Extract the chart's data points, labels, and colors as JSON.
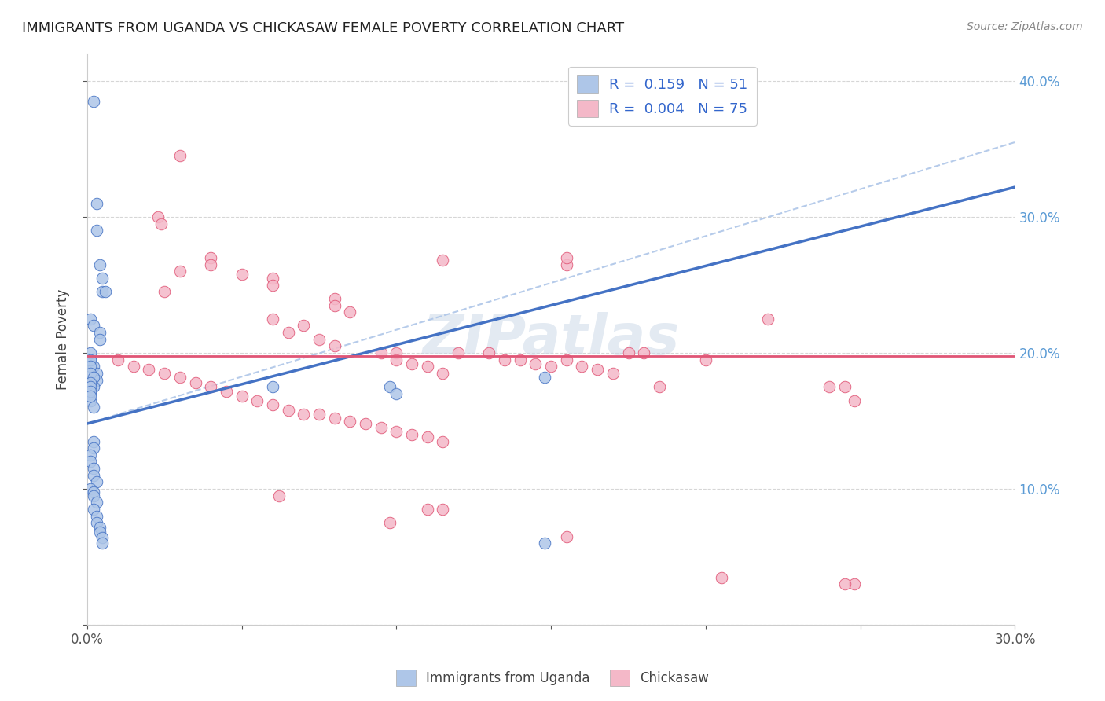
{
  "title": "IMMIGRANTS FROM UGANDA VS CHICKASAW FEMALE POVERTY CORRELATION CHART",
  "source": "Source: ZipAtlas.com",
  "ylabel": "Female Poverty",
  "xlim": [
    0.0,
    0.3
  ],
  "ylim": [
    0.0,
    0.42
  ],
  "watermark": "ZIPatlas",
  "color_blue": "#aec6e8",
  "color_pink": "#f4b8c8",
  "line_blue": "#4472c4",
  "line_pink": "#e05575",
  "line_dashed_color": "#aec6e8",
  "right_tick_color": "#5b9bd5",
  "uganda_points": [
    [
      0.002,
      0.385
    ],
    [
      0.003,
      0.31
    ],
    [
      0.003,
      0.29
    ],
    [
      0.004,
      0.265
    ],
    [
      0.005,
      0.255
    ],
    [
      0.005,
      0.245
    ],
    [
      0.006,
      0.245
    ],
    [
      0.001,
      0.225
    ],
    [
      0.002,
      0.22
    ],
    [
      0.004,
      0.215
    ],
    [
      0.004,
      0.21
    ],
    [
      0.001,
      0.195
    ],
    [
      0.002,
      0.19
    ],
    [
      0.003,
      0.185
    ],
    [
      0.003,
      0.18
    ],
    [
      0.002,
      0.175
    ],
    [
      0.001,
      0.17
    ],
    [
      0.001,
      0.165
    ],
    [
      0.002,
      0.16
    ],
    [
      0.001,
      0.2
    ],
    [
      0.001,
      0.195
    ],
    [
      0.001,
      0.19
    ],
    [
      0.001,
      0.185
    ],
    [
      0.002,
      0.182
    ],
    [
      0.001,
      0.178
    ],
    [
      0.001,
      0.175
    ],
    [
      0.001,
      0.172
    ],
    [
      0.001,
      0.168
    ],
    [
      0.002,
      0.135
    ],
    [
      0.002,
      0.13
    ],
    [
      0.001,
      0.125
    ],
    [
      0.001,
      0.12
    ],
    [
      0.002,
      0.115
    ],
    [
      0.002,
      0.11
    ],
    [
      0.003,
      0.105
    ],
    [
      0.001,
      0.1
    ],
    [
      0.002,
      0.098
    ],
    [
      0.002,
      0.095
    ],
    [
      0.003,
      0.09
    ],
    [
      0.002,
      0.085
    ],
    [
      0.003,
      0.08
    ],
    [
      0.003,
      0.075
    ],
    [
      0.004,
      0.072
    ],
    [
      0.004,
      0.068
    ],
    [
      0.005,
      0.064
    ],
    [
      0.005,
      0.06
    ],
    [
      0.06,
      0.175
    ],
    [
      0.098,
      0.175
    ],
    [
      0.1,
      0.17
    ],
    [
      0.148,
      0.182
    ],
    [
      0.148,
      0.06
    ]
  ],
  "chickasaw_points": [
    [
      0.03,
      0.345
    ],
    [
      0.115,
      0.268
    ],
    [
      0.023,
      0.3
    ],
    [
      0.024,
      0.295
    ],
    [
      0.04,
      0.27
    ],
    [
      0.04,
      0.265
    ],
    [
      0.03,
      0.26
    ],
    [
      0.05,
      0.258
    ],
    [
      0.06,
      0.255
    ],
    [
      0.06,
      0.25
    ],
    [
      0.025,
      0.245
    ],
    [
      0.08,
      0.24
    ],
    [
      0.08,
      0.235
    ],
    [
      0.085,
      0.23
    ],
    [
      0.06,
      0.225
    ],
    [
      0.07,
      0.22
    ],
    [
      0.065,
      0.215
    ],
    [
      0.075,
      0.21
    ],
    [
      0.08,
      0.205
    ],
    [
      0.095,
      0.2
    ],
    [
      0.1,
      0.2
    ],
    [
      0.1,
      0.195
    ],
    [
      0.105,
      0.192
    ],
    [
      0.11,
      0.19
    ],
    [
      0.115,
      0.185
    ],
    [
      0.12,
      0.2
    ],
    [
      0.13,
      0.2
    ],
    [
      0.135,
      0.195
    ],
    [
      0.14,
      0.195
    ],
    [
      0.145,
      0.192
    ],
    [
      0.15,
      0.19
    ],
    [
      0.155,
      0.195
    ],
    [
      0.16,
      0.19
    ],
    [
      0.165,
      0.188
    ],
    [
      0.17,
      0.185
    ],
    [
      0.175,
      0.2
    ],
    [
      0.18,
      0.2
    ],
    [
      0.22,
      0.225
    ],
    [
      0.24,
      0.175
    ],
    [
      0.248,
      0.165
    ],
    [
      0.01,
      0.195
    ],
    [
      0.015,
      0.19
    ],
    [
      0.02,
      0.188
    ],
    [
      0.025,
      0.185
    ],
    [
      0.03,
      0.182
    ],
    [
      0.035,
      0.178
    ],
    [
      0.04,
      0.175
    ],
    [
      0.045,
      0.172
    ],
    [
      0.05,
      0.168
    ],
    [
      0.055,
      0.165
    ],
    [
      0.06,
      0.162
    ],
    [
      0.065,
      0.158
    ],
    [
      0.07,
      0.155
    ],
    [
      0.075,
      0.155
    ],
    [
      0.08,
      0.152
    ],
    [
      0.085,
      0.15
    ],
    [
      0.09,
      0.148
    ],
    [
      0.095,
      0.145
    ],
    [
      0.1,
      0.142
    ],
    [
      0.105,
      0.14
    ],
    [
      0.11,
      0.138
    ],
    [
      0.115,
      0.135
    ],
    [
      0.155,
      0.265
    ],
    [
      0.062,
      0.095
    ],
    [
      0.115,
      0.085
    ],
    [
      0.155,
      0.065
    ],
    [
      0.098,
      0.075
    ],
    [
      0.205,
      0.035
    ],
    [
      0.248,
      0.03
    ],
    [
      0.11,
      0.085
    ],
    [
      0.155,
      0.27
    ],
    [
      0.2,
      0.195
    ],
    [
      0.185,
      0.175
    ],
    [
      0.245,
      0.175
    ],
    [
      0.245,
      0.03
    ]
  ]
}
